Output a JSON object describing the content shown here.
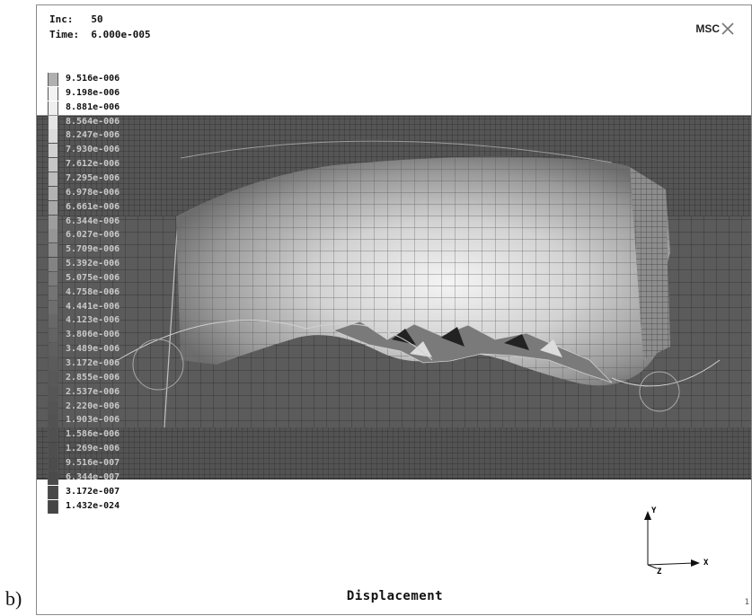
{
  "subfigure_label": "b)",
  "hud": {
    "inc": "Inc:   50",
    "time": "Time:  6.000e-005"
  },
  "logo": {
    "text": "MSC",
    "icon": "msc-x-mark-icon"
  },
  "legend": {
    "values": [
      "9.516e-006",
      "9.198e-006",
      "8.881e-006",
      "8.564e-006",
      "8.247e-006",
      "7.930e-006",
      "7.612e-006",
      "7.295e-006",
      "6.978e-006",
      "6.661e-006",
      "6.344e-006",
      "6.027e-006",
      "5.709e-006",
      "5.392e-006",
      "5.075e-006",
      "4.758e-006",
      "4.441e-006",
      "4.123e-006",
      "3.806e-006",
      "3.489e-006",
      "3.172e-006",
      "2.855e-006",
      "2.537e-006",
      "2.220e-006",
      "1.903e-006",
      "1.586e-006",
      "1.269e-006",
      "9.516e-007",
      "6.344e-007",
      "3.172e-007",
      "1.432e-024"
    ],
    "colors": [
      "#b0b0b0",
      "#f2f2f2",
      "#eeeeee",
      "#e4e4e4",
      "#dadada",
      "#d0d0d0",
      "#c6c6c6",
      "#bcbcbc",
      "#b2b2b2",
      "#a8a8a8",
      "#9e9e9e",
      "#959595",
      "#8c8c8c",
      "#838383",
      "#7b7b7b",
      "#747474",
      "#6e6e6e",
      "#686868",
      "#636363",
      "#5f5f5f",
      "#5b5b5b",
      "#585858",
      "#565656",
      "#545454",
      "#525252",
      "#505050",
      "#4e4e4e",
      "#4c4c4c",
      "#4a4a4a",
      "#484848",
      "#464646"
    ]
  },
  "axes": {
    "y_label": "Y",
    "x_label": "X",
    "z_label": "Z"
  },
  "caption": "Displacement",
  "page_number": "1"
}
